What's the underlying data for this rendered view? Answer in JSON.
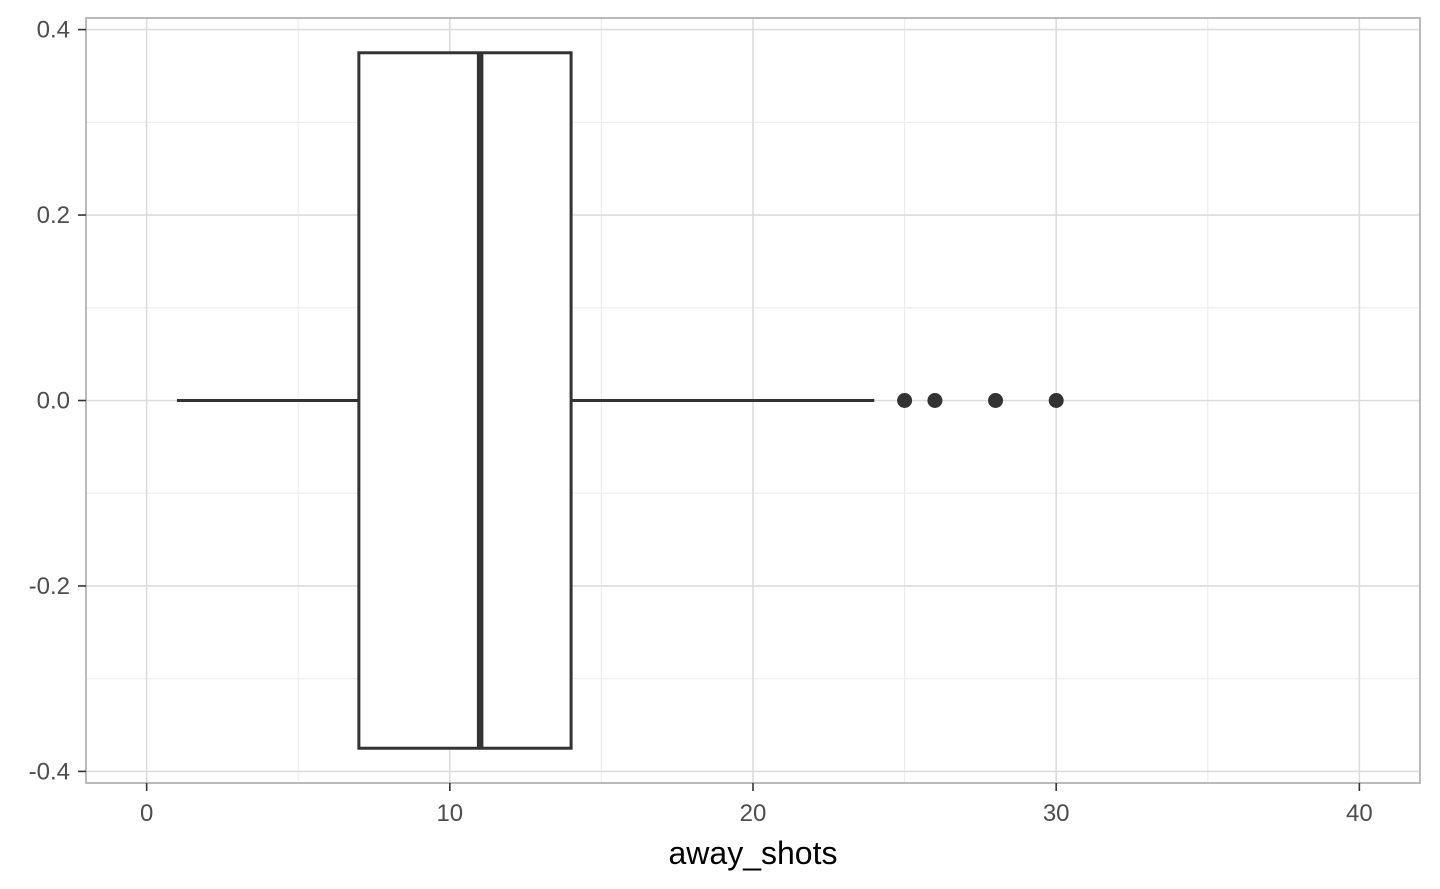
{
  "chart_data": {
    "type": "boxplot",
    "xlabel": "away_shots",
    "ylabel": "",
    "xlim": [
      -2,
      42
    ],
    "ylim": [
      -0.4125,
      0.4125
    ],
    "x_ticks": [
      0,
      10,
      20,
      30,
      40
    ],
    "x_tick_labels": [
      "0",
      "10",
      "20",
      "30",
      "40"
    ],
    "y_ticks": [
      0.4,
      0.2,
      0.0,
      -0.2,
      -0.4
    ],
    "y_tick_labels": [
      "0.4",
      "0.2",
      "0.0",
      "-0.2",
      "-0.4"
    ],
    "grid": true,
    "box": {
      "whisker_low": 1,
      "q1": 7,
      "median": 11,
      "q3": 14,
      "whisker_high": 24,
      "y_center": 0,
      "y_half_width": 0.375
    },
    "outliers": [
      25,
      26,
      28,
      30
    ],
    "colors": {
      "box_stroke": "#333333",
      "box_fill": "#ffffff",
      "outlier": "#333333"
    }
  }
}
